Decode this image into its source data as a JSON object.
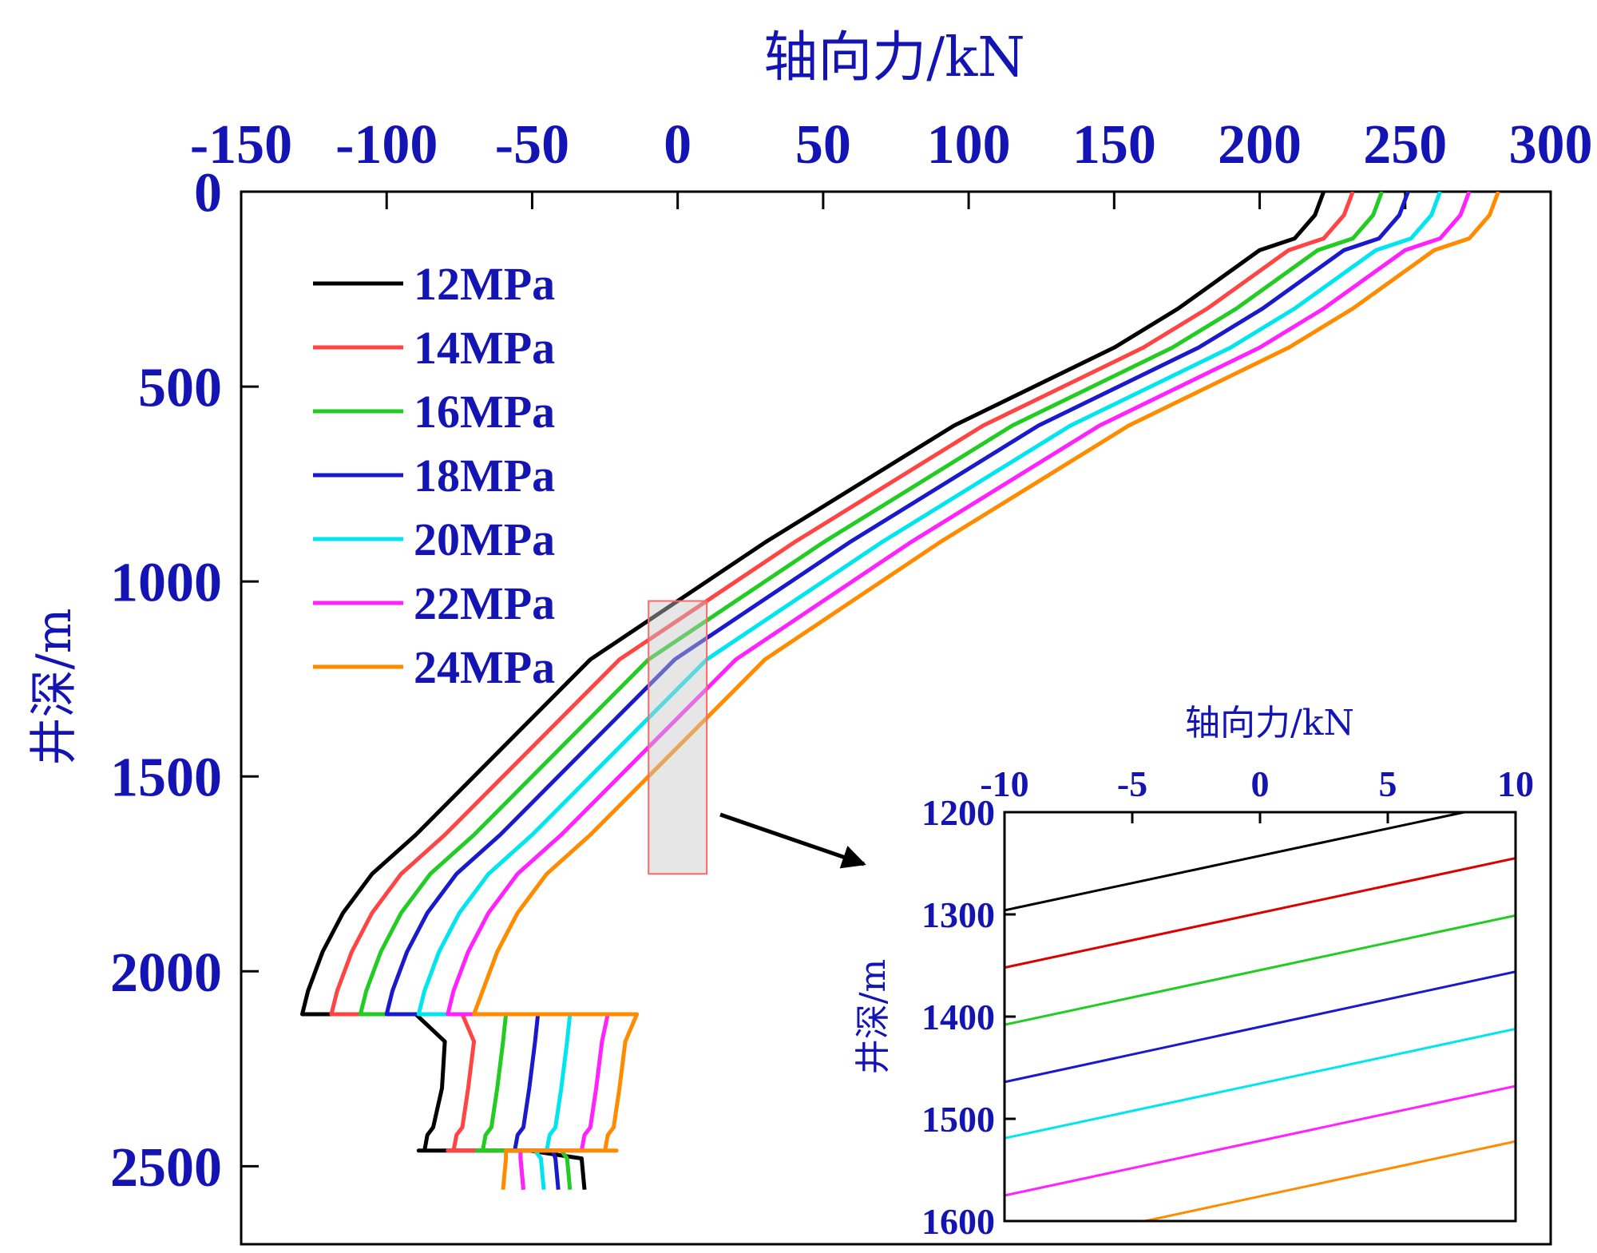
{
  "chart_data": {
    "type": "line",
    "main": {
      "xlabel": "轴向力/kN",
      "ylabel": "井深/m",
      "xlim": [
        -150,
        300
      ],
      "ylim": [
        0,
        2700
      ],
      "x_ticks": [
        -150,
        -100,
        -50,
        0,
        50,
        100,
        150,
        200,
        250,
        300
      ],
      "x_tick_labels": [
        "-150",
        "-100",
        "-50",
        "0",
        "50",
        "100",
        "150",
        "200",
        "250",
        "300"
      ],
      "y_ticks": [
        0,
        500,
        1000,
        1500,
        2000,
        2500
      ],
      "y_tick_labels": [
        "0",
        "500",
        "1000",
        "1500",
        "2000",
        "2500"
      ],
      "legend_position": "top-left",
      "series": [
        {
          "name": "12MPa",
          "color": "#000000",
          "x": [
            222,
            219,
            212,
            200,
            172,
            150,
            95,
            30,
            -30,
            -70,
            -90,
            -105,
            -115,
            -122,
            -127,
            -129,
            -128,
            -90,
            -80,
            -81,
            -84,
            -86,
            -87,
            -89,
            -89,
            -51,
            -33,
            -32
          ],
          "y": [
            0,
            60,
            120,
            150,
            300,
            400,
            600,
            900,
            1200,
            1500,
            1650,
            1750,
            1850,
            1950,
            2050,
            2110,
            2110,
            2110,
            2180,
            2300,
            2400,
            2420,
            2460,
            2460,
            2460,
            2460,
            2480,
            2560
          ]
        },
        {
          "name": "14MPa",
          "color": "#ff4444",
          "x": [
            232,
            229,
            222,
            210,
            182,
            160,
            105,
            40,
            -20,
            -60,
            -80,
            -95,
            -105,
            -112,
            -117,
            -119,
            -118,
            -74,
            -70,
            -72,
            -74,
            -76,
            -77,
            -79,
            -79,
            -54,
            -54,
            -53
          ],
          "y": [
            0,
            60,
            120,
            150,
            300,
            400,
            600,
            900,
            1200,
            1500,
            1650,
            1750,
            1850,
            1950,
            2050,
            2110,
            2110,
            2110,
            2180,
            2300,
            2400,
            2420,
            2460,
            2460,
            2460,
            2460,
            2480,
            2560
          ]
        },
        {
          "name": "16MPa",
          "color": "#22cc22",
          "x": [
            242,
            239,
            232,
            220,
            192,
            170,
            115,
            50,
            -10,
            -50,
            -70,
            -85,
            -95,
            -102,
            -107,
            -109,
            -108,
            -59,
            -60,
            -62,
            -64,
            -66,
            -67,
            -69,
            -69,
            -40,
            -38,
            -37
          ],
          "y": [
            0,
            60,
            120,
            150,
            300,
            400,
            600,
            900,
            1200,
            1500,
            1650,
            1750,
            1850,
            1950,
            2050,
            2110,
            2110,
            2110,
            2180,
            2300,
            2400,
            2420,
            2460,
            2460,
            2460,
            2460,
            2480,
            2560
          ]
        },
        {
          "name": "18MPa",
          "color": "#1a1acc",
          "x": [
            251,
            248,
            241,
            229,
            201,
            179,
            124,
            59,
            -1,
            -41,
            -61,
            -76,
            -86,
            -93,
            -98,
            -100,
            -99,
            -48,
            -49,
            -51,
            -53,
            -55,
            -56,
            -58,
            -58,
            -43,
            -42,
            -41
          ],
          "y": [
            0,
            60,
            120,
            150,
            300,
            400,
            600,
            900,
            1200,
            1500,
            1650,
            1750,
            1850,
            1950,
            2050,
            2110,
            2110,
            2110,
            2180,
            2300,
            2400,
            2420,
            2460,
            2460,
            2460,
            2460,
            2480,
            2560
          ]
        },
        {
          "name": "20MPa",
          "color": "#00e5ee",
          "x": [
            262,
            259,
            252,
            240,
            212,
            190,
            135,
            70,
            10,
            -30,
            -50,
            -65,
            -75,
            -82,
            -87,
            -89,
            -88,
            -37,
            -38,
            -40,
            -42,
            -44,
            -45,
            -47,
            -47,
            -49,
            -47,
            -46
          ],
          "y": [
            0,
            60,
            120,
            150,
            300,
            400,
            600,
            900,
            1200,
            1500,
            1650,
            1750,
            1850,
            1950,
            2050,
            2110,
            2110,
            2110,
            2180,
            2300,
            2400,
            2420,
            2460,
            2460,
            2460,
            2460,
            2480,
            2560
          ]
        },
        {
          "name": "22MPa",
          "color": "#ff22ff",
          "x": [
            272,
            269,
            262,
            250,
            222,
            200,
            145,
            80,
            20,
            -20,
            -40,
            -55,
            -65,
            -72,
            -77,
            -79,
            -78,
            -24,
            -26,
            -28,
            -30,
            -32,
            -33,
            -34,
            -34,
            -54,
            -54,
            -53
          ],
          "y": [
            0,
            60,
            120,
            150,
            300,
            400,
            600,
            900,
            1200,
            1500,
            1650,
            1750,
            1850,
            1950,
            2050,
            2110,
            2110,
            2110,
            2180,
            2300,
            2400,
            2420,
            2460,
            2460,
            2460,
            2460,
            2480,
            2560
          ]
        },
        {
          "name": "24MPa",
          "color": "#ff8c00",
          "x": [
            282,
            279,
            272,
            260,
            232,
            210,
            155,
            90,
            30,
            -10,
            -30,
            -45,
            -55,
            -62,
            -67,
            -70,
            -70,
            -14,
            -18,
            -20,
            -22,
            -24,
            -25,
            -21,
            -21,
            -59,
            -59,
            -60
          ],
          "y": [
            0,
            60,
            120,
            150,
            300,
            400,
            600,
            900,
            1200,
            1500,
            1650,
            1750,
            1850,
            1950,
            2050,
            2110,
            2110,
            2110,
            2180,
            2300,
            2400,
            2420,
            2460,
            2460,
            2460,
            2460,
            2480,
            2560
          ]
        }
      ],
      "highlight_region": {
        "x": [
          -10,
          10
        ],
        "y": [
          1050,
          1750
        ]
      }
    },
    "inset": {
      "xlabel": "轴向力/kN",
      "ylabel": "井深/m",
      "xlim": [
        -10,
        10
      ],
      "ylim": [
        1200,
        1600
      ],
      "x_ticks": [
        -10,
        -5,
        0,
        5,
        10
      ],
      "x_tick_labels": [
        "-10",
        "-5",
        "0",
        "5",
        "10"
      ],
      "y_ticks": [
        1200,
        1300,
        1400,
        1500,
        1600
      ],
      "y_tick_labels": [
        "1200",
        "1300",
        "1400",
        "1500",
        "1600"
      ],
      "series": [
        {
          "name": "12MPa",
          "color": "#000000",
          "x": [
            -10,
            8
          ],
          "y": [
            1296,
            1200
          ]
        },
        {
          "name": "14MPa",
          "color": "#dd0000",
          "x": [
            -10,
            10
          ],
          "y": [
            1352,
            1245
          ]
        },
        {
          "name": "16MPa",
          "color": "#22cc22",
          "x": [
            -10,
            10
          ],
          "y": [
            1408,
            1301
          ]
        },
        {
          "name": "18MPa",
          "color": "#1a1acc",
          "x": [
            -10,
            10
          ],
          "y": [
            1464,
            1356
          ]
        },
        {
          "name": "20MPa",
          "color": "#00e5ee",
          "x": [
            -10,
            10
          ],
          "y": [
            1519,
            1412
          ]
        },
        {
          "name": "22MPa",
          "color": "#ff22ff",
          "x": [
            -10,
            10
          ],
          "y": [
            1575,
            1468
          ]
        },
        {
          "name": "24MPa",
          "color": "#ff8c00",
          "x": [
            -4.5,
            10
          ],
          "y": [
            1600,
            1522
          ]
        }
      ]
    }
  }
}
